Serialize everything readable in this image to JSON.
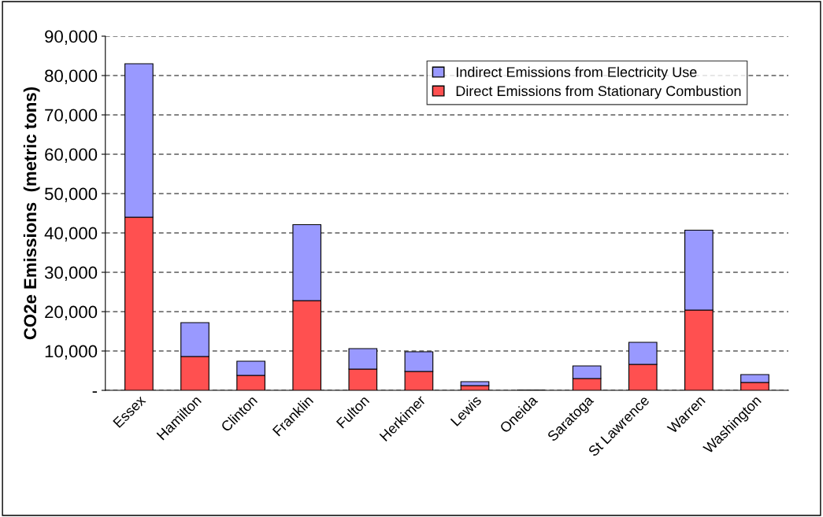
{
  "chart_data": {
    "type": "bar",
    "stacked": true,
    "ylabel": "CO2e Emissions  (metric tons)",
    "categories": [
      "Essex",
      "Hamilton",
      "Clinton",
      "Franklin",
      "Fulton",
      "Herkimer",
      "Lewis",
      "Oneida",
      "Saratoga",
      "St Lawrence",
      "Warren",
      "Washington"
    ],
    "series": [
      {
        "name": "Direct Emissions from Stationary Combustion",
        "color": "#ff5050",
        "values": [
          44000,
          8600,
          3800,
          22800,
          5400,
          4800,
          1200,
          0,
          3000,
          6600,
          20400,
          2000
        ]
      },
      {
        "name": "Indirect Emissions from Electricity Use",
        "color": "#9999ff",
        "values": [
          39000,
          8600,
          3600,
          19300,
          5200,
          5000,
          1000,
          0,
          3200,
          5600,
          20300,
          2000
        ]
      }
    ],
    "ylim": [
      0,
      90000
    ],
    "yticks": [
      {
        "value": 0,
        "label": "-"
      },
      {
        "value": 10000,
        "label": "10,000"
      },
      {
        "value": 20000,
        "label": "20,000"
      },
      {
        "value": 30000,
        "label": "30,000"
      },
      {
        "value": 40000,
        "label": "40,000"
      },
      {
        "value": 50000,
        "label": "50,000"
      },
      {
        "value": 60000,
        "label": "60,000"
      },
      {
        "value": 70000,
        "label": "70,000"
      },
      {
        "value": 80000,
        "label": "80,000"
      },
      {
        "value": 90000,
        "label": "90,000"
      }
    ],
    "grid": "y",
    "legend": "top right"
  }
}
